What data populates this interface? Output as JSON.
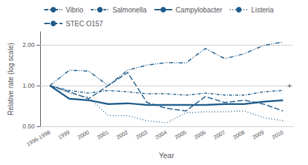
{
  "chart_data": {
    "type": "line",
    "xlabel": "Year",
    "ylabel": "Relative rate (log scale)",
    "categories": [
      "1996-1998",
      "1999",
      "2000",
      "2001",
      "2002",
      "2003",
      "2004",
      "2005",
      "2006",
      "2007",
      "2008",
      "2009",
      "2010"
    ],
    "series": [
      {
        "name": "Vibrio",
        "color": "#1f5c8b",
        "line_style": "dashdotdot",
        "values": [
          1.0,
          1.3,
          1.28,
          1.0,
          1.3,
          1.42,
          1.48,
          1.47,
          1.88,
          1.58,
          1.72,
          1.98,
          2.1
        ]
      },
      {
        "name": "Salmonella",
        "color": "#1f5c8b",
        "line_style": "dashdot",
        "values": [
          1.0,
          0.92,
          0.88,
          0.92,
          0.9,
          0.87,
          0.87,
          0.85,
          0.88,
          0.85,
          0.85,
          0.9,
          0.92
        ]
      },
      {
        "name": "Campylobacter",
        "color": "#1f5c8b",
        "line_style": "solid",
        "values": [
          1.0,
          0.8,
          0.78,
          0.73,
          0.74,
          0.72,
          0.72,
          0.72,
          0.72,
          0.73,
          0.73,
          0.76,
          0.78
        ]
      },
      {
        "name": "Listeria",
        "color": "#1f5c8b",
        "line_style": "dotted",
        "values": [
          1.0,
          0.88,
          0.82,
          0.6,
          0.6,
          0.55,
          0.53,
          0.63,
          0.64,
          0.64,
          0.65,
          0.58,
          0.55
        ]
      },
      {
        "name": "STEC O157",
        "color": "#1f5c8b",
        "line_style": "dashed",
        "values": [
          1.0,
          0.9,
          0.8,
          1.0,
          1.25,
          0.75,
          0.68,
          0.65,
          0.83,
          0.75,
          0.78,
          0.73,
          0.65
        ]
      }
    ],
    "log": "y",
    "ylim": [
      0.5,
      2.5
    ],
    "yticks": [
      {
        "value": 0.5,
        "label": "0.50"
      },
      {
        "value": 1,
        "label": "1.00"
      },
      {
        "value": 2,
        "label": "2.00"
      }
    ],
    "grid": true,
    "legend": "upper left",
    "annotations": [
      {
        "text": "+",
        "x": "2010",
        "y": 1
      }
    ]
  }
}
